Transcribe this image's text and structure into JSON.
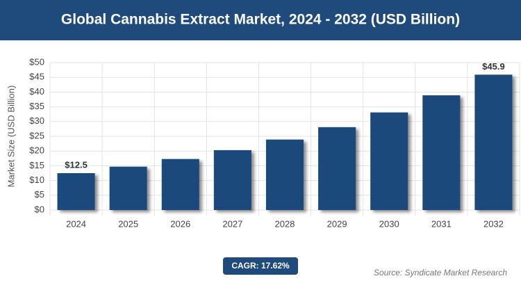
{
  "chart_data": {
    "type": "bar",
    "title": "Global Cannabis Extract Market, 2024 - 2032 (USD Billion)",
    "y_label": "Market Size (USD Billion)",
    "categories": [
      "2024",
      "2025",
      "2026",
      "2027",
      "2028",
      "2029",
      "2030",
      "2031",
      "2032"
    ],
    "values": [
      12.5,
      14.7,
      17.3,
      20.3,
      23.9,
      28.1,
      33.1,
      38.9,
      45.9
    ],
    "value_labels": [
      "$12.5",
      null,
      null,
      null,
      null,
      null,
      null,
      null,
      "$45.9"
    ],
    "color": "#1f4a7c",
    "ylim": [
      0,
      50
    ],
    "yticks": [
      {
        "value": 0,
        "label": "$0"
      },
      {
        "value": 5,
        "label": "$5"
      },
      {
        "value": 10,
        "label": "$10"
      },
      {
        "value": 15,
        "label": "$15"
      },
      {
        "value": 20,
        "label": "$20"
      },
      {
        "value": 25,
        "label": "$25"
      },
      {
        "value": 30,
        "label": "$30"
      },
      {
        "value": 35,
        "label": "$35"
      },
      {
        "value": 40,
        "label": "$40"
      },
      {
        "value": 45,
        "label": "$45"
      },
      {
        "value": 50,
        "label": "$50"
      }
    ],
    "grid": true,
    "annotation": "CAGR: 17.62%",
    "source": "Source: Syndicate Market Research"
  }
}
